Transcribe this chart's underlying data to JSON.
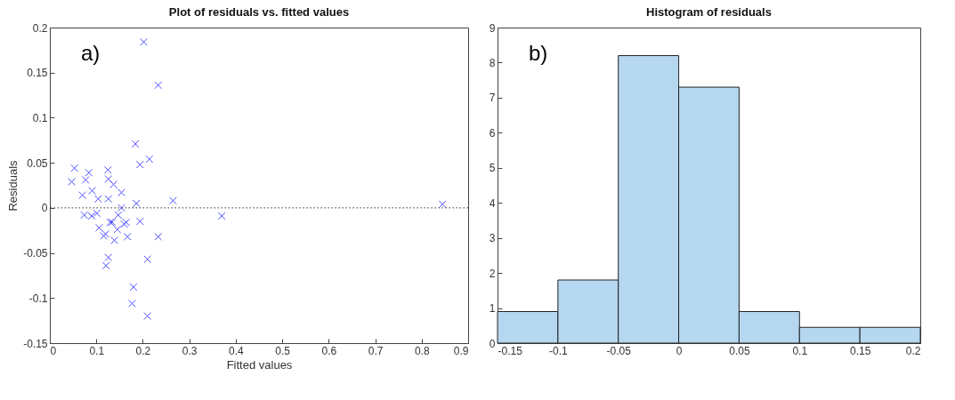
{
  "chart_data": [
    {
      "type": "scatter",
      "title": "Plot of residuals vs. fitted values",
      "xlabel": "Fitted values",
      "ylabel": "Residuals",
      "annotations": [
        "a)"
      ],
      "x": [
        0.047,
        0.053,
        0.07,
        0.077,
        0.084,
        0.074,
        0.091,
        0.09,
        0.101,
        0.104,
        0.106,
        0.116,
        0.12,
        0.125,
        0.126,
        0.126,
        0.126,
        0.121,
        0.13,
        0.134,
        0.137,
        0.139,
        0.145,
        0.147,
        0.154,
        0.154,
        0.16,
        0.164,
        0.167,
        0.18,
        0.177,
        0.184,
        0.186,
        0.194,
        0.194,
        0.21,
        0.21,
        0.214,
        0.233,
        0.265,
        0.37,
        0.202,
        0.233,
        0.845
      ],
      "series": [
        {
          "color": "#4d4dff",
          "values": [
            0.029,
            0.044,
            0.014,
            0.031,
            0.039,
            -0.008,
            0.019,
            -0.009,
            -0.006,
            0.01,
            -0.022,
            -0.031,
            -0.029,
            0.042,
            0.032,
            0.01,
            -0.055,
            -0.064,
            -0.016,
            -0.016,
            0.026,
            -0.036,
            -0.024,
            -0.008,
            0.017,
            0.0,
            -0.018,
            -0.016,
            -0.032,
            -0.088,
            -0.106,
            0.071,
            0.005,
            0.048,
            -0.015,
            -0.057,
            -0.12,
            0.054,
            -0.032,
            0.008,
            -0.009,
            0.184,
            0.136,
            0.004
          ]
        }
      ],
      "marker": "cross",
      "xlim": [
        0,
        0.9
      ],
      "xticks": [
        0,
        0.1,
        0.2,
        0.3,
        0.4,
        0.5,
        0.6,
        0.7,
        0.8,
        0.9
      ],
      "ylim": [
        -0.15,
        0.2
      ],
      "yticks": [
        -0.15,
        -0.1,
        -0.05,
        0,
        0.05,
        0.1,
        0.15,
        0.2
      ],
      "ref_lines": [
        {
          "axis": "y",
          "value": 0,
          "color": "#333333",
          "line_style": "dotted"
        }
      ]
    },
    {
      "type": "histogram",
      "title": "Histogram of residuals",
      "annotations": [
        "b)"
      ],
      "color": "#b5d8f0",
      "bins": [
        -0.15,
        -0.1,
        -0.05,
        0,
        0.05,
        0.1,
        0.15,
        0.2
      ],
      "values": [
        0.9,
        1.8,
        8.2,
        7.3,
        0.9,
        0.45,
        0.45
      ],
      "xlim": [
        -0.15,
        0.2
      ],
      "xticks": [
        -0.15,
        -0.1,
        -0.05,
        0,
        0.05,
        0.1,
        0.15,
        0.2
      ],
      "ylim": [
        0,
        9
      ],
      "yticks": [
        0,
        1,
        2,
        3,
        4,
        5,
        6,
        7,
        8,
        9
      ]
    }
  ]
}
